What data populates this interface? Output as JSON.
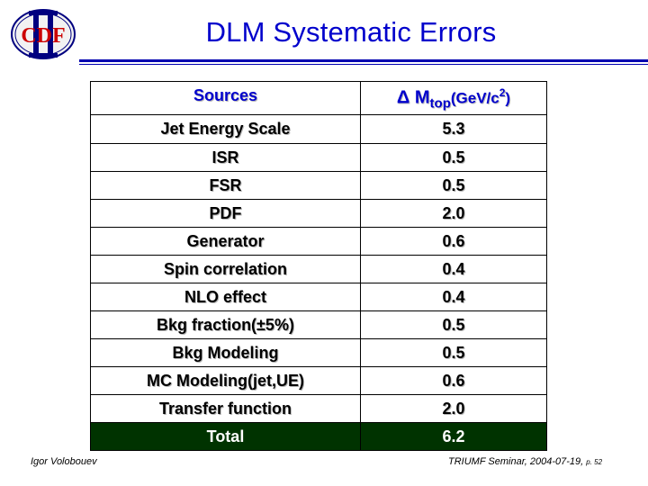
{
  "header": {
    "title": "DLM Systematic Errors",
    "logo_text": "CDF",
    "logo_roman": "II"
  },
  "table": {
    "col_source_header": "Sources",
    "col_value_header": {
      "delta": "Δ",
      "m": "M",
      "sub": "top",
      "unit_open": "(GeV/c",
      "unit_sup": "2",
      "unit_close": ")"
    },
    "rows": [
      {
        "source": "Jet Energy Scale",
        "value": "5.3"
      },
      {
        "source": "ISR",
        "value": "0.5"
      },
      {
        "source": "FSR",
        "value": "0.5"
      },
      {
        "source": "PDF",
        "value": "2.0"
      },
      {
        "source": "Generator",
        "value": "0.6"
      },
      {
        "source": "Spin correlation",
        "value": "0.4"
      },
      {
        "source": "NLO effect",
        "value": "0.4"
      },
      {
        "source": "Bkg fraction(±5%)",
        "value": "0.5"
      },
      {
        "source": "Bkg Modeling",
        "value": "0.5"
      },
      {
        "source": "MC Modeling(jet,UE)",
        "value": "0.6"
      },
      {
        "source": "Transfer function",
        "value": "2.0"
      }
    ],
    "total": {
      "source": "Total",
      "value": "6.2"
    }
  },
  "footer": {
    "author": "Igor Volobouev",
    "talk": "TRIUMF Seminar, 2004-07-19,",
    "page": "p. 52"
  },
  "colors": {
    "title_blue": "#0000cc",
    "rule_blue": "#0000b0",
    "total_bg": "#003300",
    "logo_red": "#cc0000"
  }
}
